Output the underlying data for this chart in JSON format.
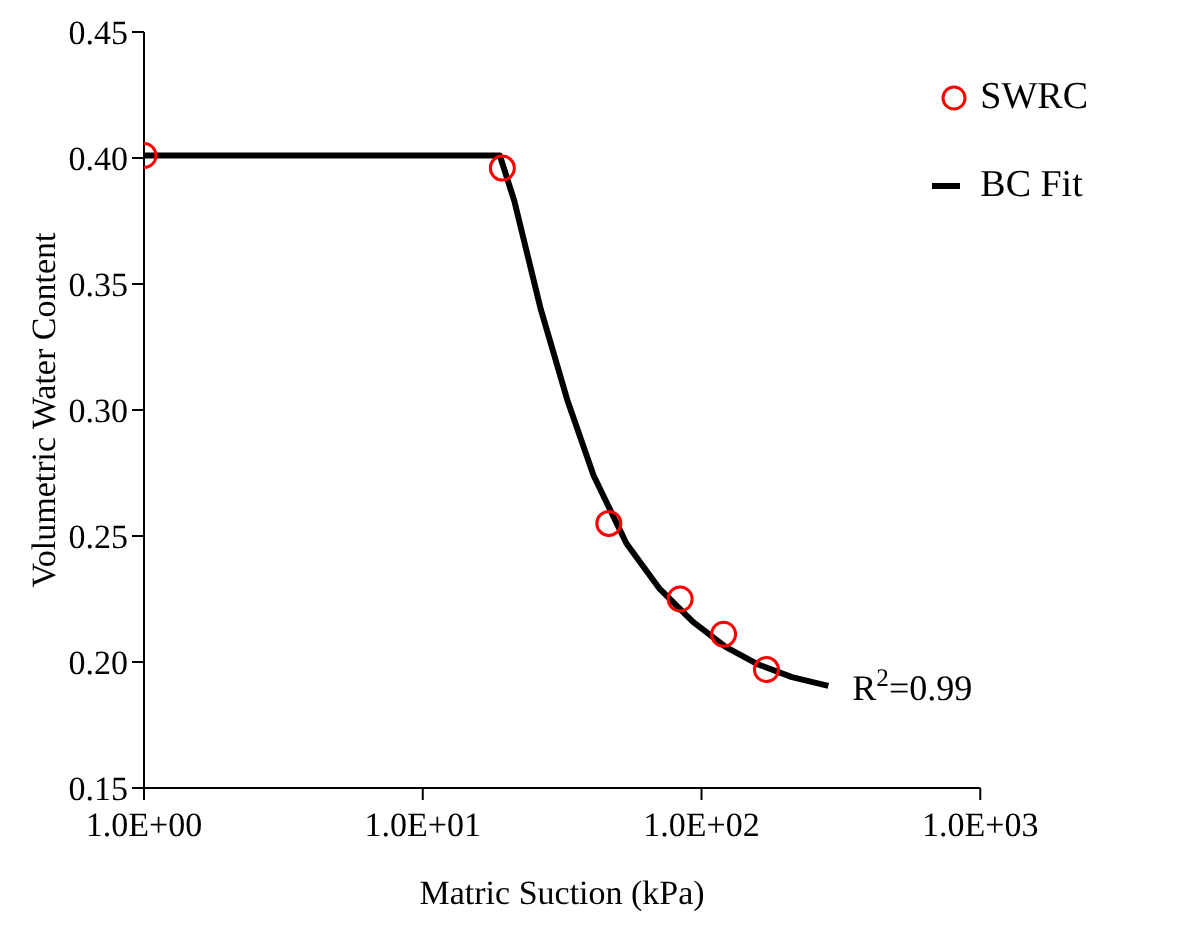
{
  "chart_data": {
    "type": "scatter",
    "xlabel": "Matric Suction (kPa)",
    "ylabel": "Volumetric Water Content",
    "log": "x",
    "grid": false,
    "legend": "top right",
    "xlim": [
      1,
      1000
    ],
    "xticks": [
      {
        "value": 1,
        "label": "1.0E+00"
      },
      {
        "value": 10,
        "label": "1.0E+01"
      },
      {
        "value": 100,
        "label": "1.0E+02"
      },
      {
        "value": 1000,
        "label": "1.0E+03"
      }
    ],
    "ylim": [
      0.15,
      0.45
    ],
    "yticks": [
      {
        "value": 0.15,
        "label": "0.15"
      },
      {
        "value": 0.2,
        "label": "0.20"
      },
      {
        "value": 0.25,
        "label": "0.25"
      },
      {
        "value": 0.3,
        "label": "0.30"
      },
      {
        "value": 0.35,
        "label": "0.35"
      },
      {
        "value": 0.4,
        "label": "0.40"
      },
      {
        "value": 0.45,
        "label": "0.45"
      }
    ],
    "series": [
      {
        "name": "SWRC",
        "marker": "circle",
        "color": "#ff0000",
        "x": [
          1,
          19.3,
          46.5,
          83.8,
          120,
          171
        ],
        "values": [
          0.401,
          0.396,
          0.255,
          0.225,
          0.211,
          0.197
        ]
      },
      {
        "name": "BC Fit",
        "type": "line",
        "marker": "none",
        "line_style": "solid",
        "color": "#000000",
        "x": [
          1,
          18.9,
          21.3,
          26.5,
          33,
          41,
          53.8,
          70.8,
          93,
          122,
          160,
          211,
          285
        ],
        "values": [
          0.401,
          0.401,
          0.383,
          0.34,
          0.304,
          0.274,
          0.247,
          0.229,
          0.216,
          0.206,
          0.199,
          0.194,
          0.1905
        ]
      }
    ],
    "annotations": [
      "R$^{2}$=0.99"
    ]
  }
}
